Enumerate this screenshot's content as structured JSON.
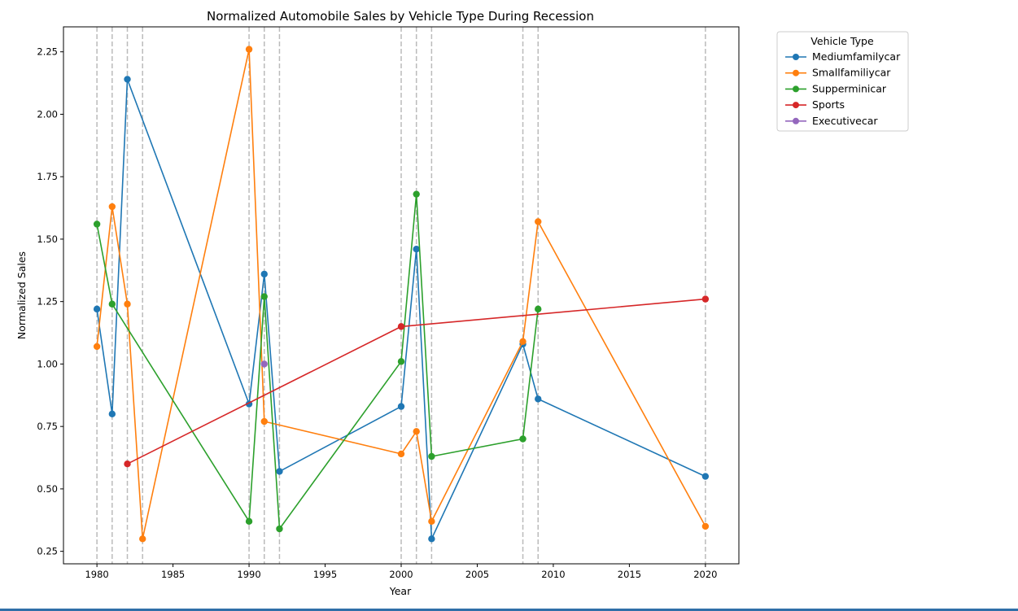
{
  "chart_data": {
    "type": "line",
    "title": "Normalized Automobile Sales by Vehicle Type During Recession",
    "xlabel": "Year",
    "ylabel": "Normalized Sales",
    "xlim": [
      1977.8,
      2022.2
    ],
    "ylim": [
      0.2,
      2.35
    ],
    "x_ticks": [
      1980,
      1985,
      1990,
      1995,
      2000,
      2005,
      2010,
      2015,
      2020
    ],
    "y_ticks": [
      0.25,
      0.5,
      0.75,
      1.0,
      1.25,
      1.5,
      1.75,
      2.0,
      2.25
    ],
    "y_tick_labels": [
      "0.25",
      "0.50",
      "0.75",
      "1.00",
      "1.25",
      "1.50",
      "1.75",
      "2.00",
      "2.25"
    ],
    "grid": false,
    "recession_years": [
      1980,
      1981,
      1982,
      1983,
      1990,
      1991,
      1992,
      2000,
      2001,
      2002,
      2008,
      2009,
      2020
    ],
    "vline_color": "#bbbbbb",
    "legend": {
      "title": "Vehicle Type",
      "position": "outside top-right"
    },
    "series": [
      {
        "name": "Mediumfamilycar",
        "color": "#1f77b4",
        "points": [
          [
            1980,
            1.22
          ],
          [
            1981,
            0.8
          ],
          [
            1982,
            2.14
          ],
          [
            1990,
            0.84
          ],
          [
            1991,
            1.36
          ],
          [
            1992,
            0.57
          ],
          [
            2000,
            0.83
          ],
          [
            2001,
            1.46
          ],
          [
            2002,
            0.3
          ],
          [
            2008,
            1.08
          ],
          [
            2009,
            0.86
          ],
          [
            2020,
            0.55
          ]
        ]
      },
      {
        "name": "Smallfamiliycar",
        "color": "#ff7f0e",
        "points": [
          [
            1980,
            1.07
          ],
          [
            1981,
            1.63
          ],
          [
            1982,
            1.24
          ],
          [
            1983,
            0.3
          ],
          [
            1990,
            2.26
          ],
          [
            1991,
            0.77
          ],
          [
            2000,
            0.64
          ],
          [
            2001,
            0.73
          ],
          [
            2002,
            0.37
          ],
          [
            2008,
            1.09
          ],
          [
            2009,
            1.57
          ],
          [
            2020,
            0.35
          ]
        ]
      },
      {
        "name": "Supperminicar",
        "color": "#2ca02c",
        "points": [
          [
            1980,
            1.56
          ],
          [
            1981,
            1.24
          ],
          [
            1990,
            0.37
          ],
          [
            1991,
            1.27
          ],
          [
            1992,
            0.34
          ],
          [
            2000,
            1.01
          ],
          [
            2001,
            1.68
          ],
          [
            2002,
            0.63
          ],
          [
            2008,
            0.7
          ],
          [
            2009,
            1.22
          ]
        ]
      },
      {
        "name": "Sports",
        "color": "#d62728",
        "points": [
          [
            1982,
            0.6
          ],
          [
            2000,
            1.15
          ],
          [
            2020,
            1.26
          ]
        ]
      },
      {
        "name": "Executivecar",
        "color": "#9467bd",
        "points": [
          [
            1991,
            1.0
          ]
        ]
      }
    ]
  }
}
